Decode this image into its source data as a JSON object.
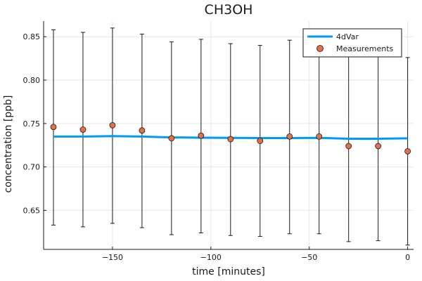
{
  "chart_data": {
    "type": "line",
    "title": "CH3OH",
    "xlabel": "time [minutes]",
    "ylabel": "concentration [ppb]",
    "xlim": [
      -185,
      3
    ],
    "ylim": [
      0.605,
      0.868
    ],
    "x_ticks": [
      -150,
      -100,
      -50,
      0
    ],
    "y_ticks": [
      0.65,
      0.7,
      0.75,
      0.8,
      0.85
    ],
    "grid": true,
    "legend_position": "top-right",
    "series": [
      {
        "name": "4dVar",
        "kind": "line",
        "color": "#009af9",
        "x": [
          -180,
          -165,
          -150,
          -135,
          -120,
          -105,
          -90,
          -75,
          -60,
          -45,
          -30,
          -15,
          0
        ],
        "y": [
          0.735,
          0.735,
          0.7355,
          0.735,
          0.734,
          0.7337,
          0.7335,
          0.7333,
          0.7333,
          0.7335,
          0.7325,
          0.7325,
          0.733
        ]
      },
      {
        "name": "Measurements",
        "kind": "scatter",
        "color": "#e26f46",
        "x": [
          -180,
          -165,
          -150,
          -135,
          -120,
          -105,
          -90,
          -75,
          -60,
          -45,
          -30,
          -15,
          0
        ],
        "y": [
          0.746,
          0.743,
          0.748,
          0.742,
          0.733,
          0.736,
          0.732,
          0.73,
          0.735,
          0.735,
          0.724,
          0.724,
          0.718
        ],
        "err_low": [
          0.633,
          0.631,
          0.635,
          0.63,
          0.622,
          0.624,
          0.621,
          0.62,
          0.623,
          0.623,
          0.614,
          0.615,
          0.61
        ],
        "err_high": [
          0.858,
          0.855,
          0.86,
          0.853,
          0.844,
          0.847,
          0.842,
          0.84,
          0.846,
          0.846,
          0.834,
          0.834,
          0.826
        ]
      }
    ]
  }
}
